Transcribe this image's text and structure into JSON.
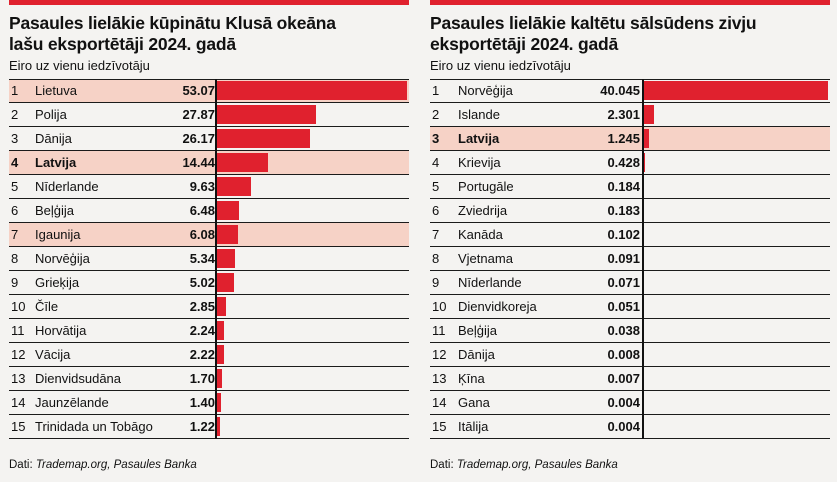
{
  "colors": {
    "bar": "#e0212e",
    "highlight": "#f6d2c6",
    "topbar": "#e0212e"
  },
  "source_label": "Dati:",
  "chart_data": [
    {
      "type": "bar",
      "title": "Pasaules lielākie kūpinātu Klusā okeāna lašu eksportētāji 2024. gadā",
      "title_line1": "Pasaules lielākie kūpinātu Klusā okeāna",
      "title_line2": "lašu eksportētāji 2024. gadā",
      "subtitle": "Eiro uz vienu iedzīvotāju",
      "source": "Trademap.org, Pasaules Banka",
      "categories": [
        "Lietuva",
        "Polija",
        "Dānija",
        "Latvija",
        "Nīderlande",
        "Beļģija",
        "Igaunija",
        "Norvēģija",
        "Grieķija",
        "Čīle",
        "Horvātija",
        "Vācija",
        "Dienvidsudāna",
        "Jaunzēlande",
        "Trinidada un Tobāgo"
      ],
      "values": [
        53.07,
        27.87,
        26.17,
        14.44,
        9.63,
        6.48,
        6.08,
        5.34,
        5.02,
        2.85,
        2.24,
        2.22,
        1.7,
        1.4,
        1.22
      ],
      "labels": [
        "53.07",
        "27.87",
        "26.17",
        "14.44",
        "9.63",
        "6.48",
        "6.08",
        "5.34",
        "5.02",
        "2.85",
        "2.24",
        "2.22",
        "1.70",
        "1.40",
        "1.22"
      ],
      "ranks": [
        "1",
        "2",
        "3",
        "4",
        "5",
        "6",
        "7",
        "8",
        "9",
        "10",
        "11",
        "12",
        "13",
        "14",
        "15"
      ],
      "highlighted": [
        "Lietuva",
        "Latvija",
        "Igaunija"
      ],
      "bold": [
        "Latvija"
      ],
      "xlim": [
        0,
        53.07
      ]
    },
    {
      "type": "bar",
      "title": "Pasaules lielākie kaltētu sālsūdens zivju eksportētāji 2024. gadā",
      "title_line1": "Pasaules lielākie kaltētu sālsūdens zivju",
      "title_line2": "eksportētāji 2024. gadā",
      "subtitle": "Eiro uz vienu iedzīvotāju",
      "source": "Trademap.org, Pasaules Banka",
      "categories": [
        "Norvēģija",
        "Islande",
        "Latvija",
        "Krievija",
        "Portugāle",
        "Zviedrija",
        "Kanāda",
        "Vjetnama",
        "Nīderlande",
        "Dienvidkoreja",
        "Beļģija",
        "Dānija",
        "Ķīna",
        "Gana",
        "Itālija"
      ],
      "values": [
        40.045,
        2.301,
        1.245,
        0.428,
        0.184,
        0.183,
        0.102,
        0.091,
        0.071,
        0.051,
        0.038,
        0.008,
        0.007,
        0.004,
        0.004
      ],
      "labels": [
        "40.045",
        "2.301",
        "1.245",
        "0.428",
        "0.184",
        "0.183",
        "0.102",
        "0.091",
        "0.071",
        "0.051",
        "0.038",
        "0.008",
        "0.007",
        "0.004",
        "0.004"
      ],
      "ranks": [
        "1",
        "2",
        "3",
        "4",
        "5",
        "6",
        "7",
        "8",
        "9",
        "10",
        "11",
        "12",
        "13",
        "14",
        "15"
      ],
      "highlighted": [
        "Latvija"
      ],
      "bold": [
        "Latvija"
      ],
      "xlim": [
        0,
        40.045
      ]
    }
  ]
}
